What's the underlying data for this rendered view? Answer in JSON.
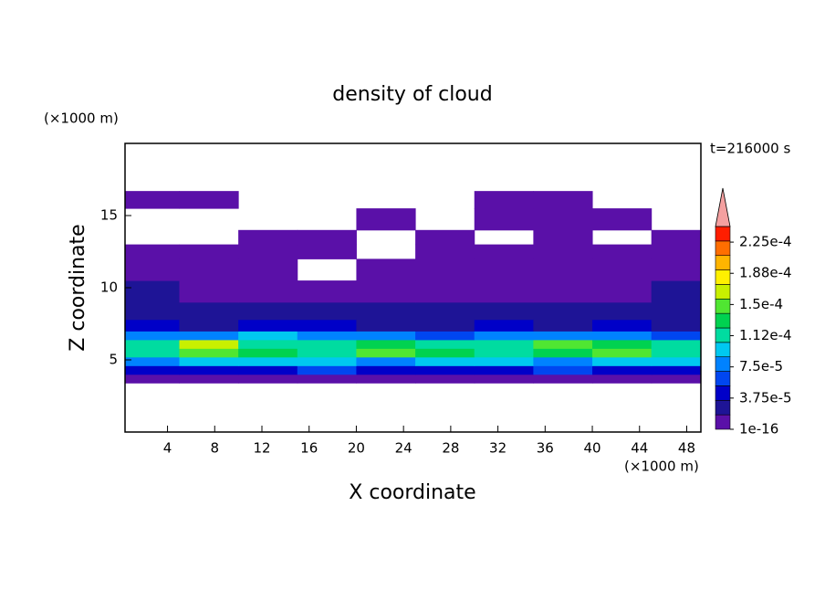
{
  "chart_data": {
    "type": "contour",
    "title": "density of cloud",
    "annotation": "t=216000 s",
    "x_label": "X coordinate",
    "y_label": "Z coordinate",
    "x_unit": "(×1000 m)",
    "y_unit": "(×1000 m)",
    "xlim": [
      0.4,
      49.2
    ],
    "xticks": [
      4,
      8,
      12,
      16,
      20,
      24,
      28,
      32,
      36,
      40,
      44,
      48
    ],
    "ylim": [
      0,
      20
    ],
    "yticks": [
      5,
      10,
      15
    ],
    "x_edges": [
      0.4,
      5,
      10,
      15,
      20,
      25,
      30,
      35,
      40,
      45,
      49.2
    ],
    "z_edges": [
      3.4,
      4,
      4.6,
      5.2,
      5.8,
      6.4,
      7,
      7.8,
      9,
      10.5,
      12,
      13,
      14,
      15.5,
      16.7
    ],
    "values": [
      [
        1e-05,
        1e-05,
        1e-05,
        1e-05,
        1e-05,
        1e-05,
        1e-05,
        1e-05,
        1e-05,
        1e-05
      ],
      [
        4e-05,
        5e-05,
        4e-05,
        6e-05,
        5e-05,
        4e-05,
        5e-05,
        6e-05,
        5e-05,
        4e-05
      ],
      [
        8e-05,
        9e-05,
        0.0001,
        9e-05,
        8e-05,
        0.0001,
        9e-05,
        8e-05,
        0.0001,
        9e-05
      ],
      [
        0.00012,
        0.00014,
        0.00013,
        0.00012,
        0.00014,
        0.00013,
        0.00012,
        0.00013,
        0.00014,
        0.00012
      ],
      [
        0.00011,
        0.00016,
        0.00012,
        0.00011,
        0.00013,
        0.00012,
        0.00011,
        0.00015,
        0.00013,
        0.00011
      ],
      [
        7e-05,
        8e-05,
        9e-05,
        8e-05,
        7e-05,
        6e-05,
        7e-05,
        8e-05,
        7e-05,
        6e-05
      ],
      [
        4e-05,
        3e-05,
        4e-05,
        4e-05,
        3e-05,
        3e-05,
        4e-05,
        3e-05,
        4e-05,
        3e-05
      ],
      [
        2e-05,
        2.5e-05,
        2e-05,
        2e-05,
        2.5e-05,
        2e-05,
        2e-05,
        2e-05,
        2e-05,
        2e-05
      ],
      [
        2e-05,
        1e-05,
        1e-05,
        1e-05,
        1e-05,
        1e-05,
        1e-05,
        1e-05,
        1e-05,
        2e-05
      ],
      [
        1e-05,
        1e-05,
        1e-05,
        null,
        1e-05,
        1e-05,
        1e-05,
        1e-05,
        1e-05,
        1e-05
      ],
      [
        1e-05,
        1e-05,
        1e-05,
        1e-05,
        null,
        1e-05,
        1e-05,
        1e-05,
        1e-05,
        1e-05
      ],
      [
        null,
        null,
        1e-05,
        1e-05,
        null,
        1e-05,
        null,
        1e-05,
        null,
        1e-05
      ],
      [
        null,
        null,
        null,
        null,
        1e-05,
        null,
        1e-05,
        1e-05,
        1e-05,
        null
      ],
      [
        1e-05,
        1e-05,
        null,
        null,
        null,
        null,
        1e-05,
        1e-05,
        null,
        null
      ]
    ],
    "colorbar": {
      "lim": [
        1e-16,
        0.00024375
      ],
      "ticks": [
        {
          "value": 1e-16,
          "label": "1e-16"
        },
        {
          "value": 3.75e-05,
          "label": "3.75e-5"
        },
        {
          "value": 7.5e-05,
          "label": "7.5e-5"
        },
        {
          "value": 0.0001125,
          "label": "1.12e-4"
        },
        {
          "value": 0.00015,
          "label": "1.5e-4"
        },
        {
          "value": 0.0001875,
          "label": "1.88e-4"
        },
        {
          "value": 0.000225,
          "label": "2.25e-4"
        }
      ],
      "colors": [
        "#5a10a8",
        "#1e1496",
        "#0000c8",
        "#0046f0",
        "#0082ff",
        "#00c8f0",
        "#00dca0",
        "#00d250",
        "#50e632",
        "#c8f000",
        "#fff000",
        "#ffb400",
        "#ff6e00",
        "#ff1e00"
      ],
      "extend_color": "#f4a0a0"
    }
  }
}
